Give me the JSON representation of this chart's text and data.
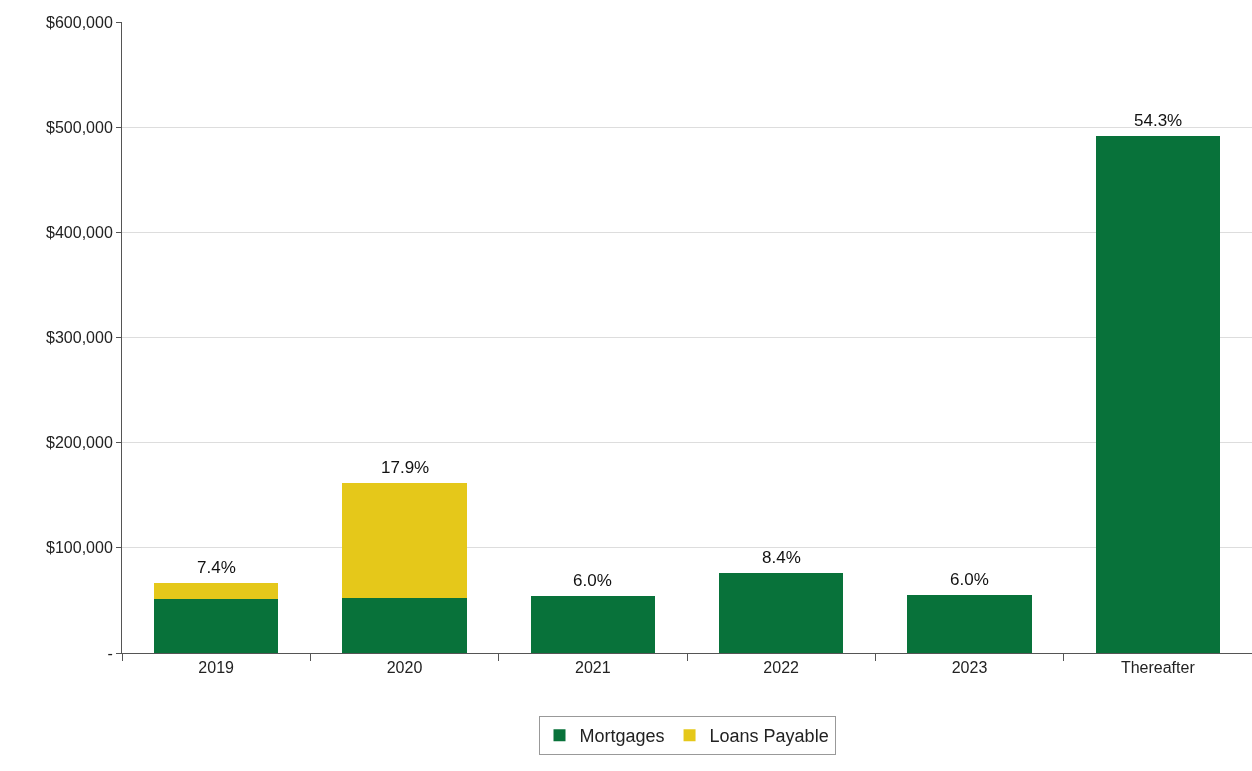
{
  "chart_data": {
    "type": "bar",
    "stacked": true,
    "categories": [
      "2019",
      "2020",
      "2021",
      "2022",
      "2023",
      "Thereafter"
    ],
    "series": [
      {
        "name": "Mortgages",
        "color": "#08723a",
        "values": [
          51000,
          52000,
          54000,
          76000,
          55000,
          492000
        ]
      },
      {
        "name": "Loans Payable",
        "color": "#e5c81a",
        "values": [
          16000,
          110000,
          null,
          null,
          null,
          null
        ]
      }
    ],
    "annotations": [
      {
        "text": "7.4%",
        "x": "2019",
        "y": 67000
      },
      {
        "text": "17.9%",
        "x": "2020",
        "y": 162000
      },
      {
        "text": "6.0%",
        "x": "2021",
        "y": 54000
      },
      {
        "text": "8.4%",
        "x": "2022",
        "y": 76000
      },
      {
        "text": "6.0%",
        "x": "2023",
        "y": 55000
      },
      {
        "text": "54.3%",
        "x": "Thereafter",
        "y": 492000
      }
    ],
    "ylim": [
      0,
      600000
    ],
    "yticks": [
      {
        "value": 0,
        "label": "-"
      },
      {
        "value": 100000,
        "label": "$100,000"
      },
      {
        "value": 200000,
        "label": "$200,000"
      },
      {
        "value": 300000,
        "label": "$300,000"
      },
      {
        "value": 400000,
        "label": "$400,000"
      },
      {
        "value": 500000,
        "label": "$500,000"
      },
      {
        "value": 600000,
        "label": "$600,000"
      }
    ],
    "grid": "y",
    "legend": "bottom"
  }
}
